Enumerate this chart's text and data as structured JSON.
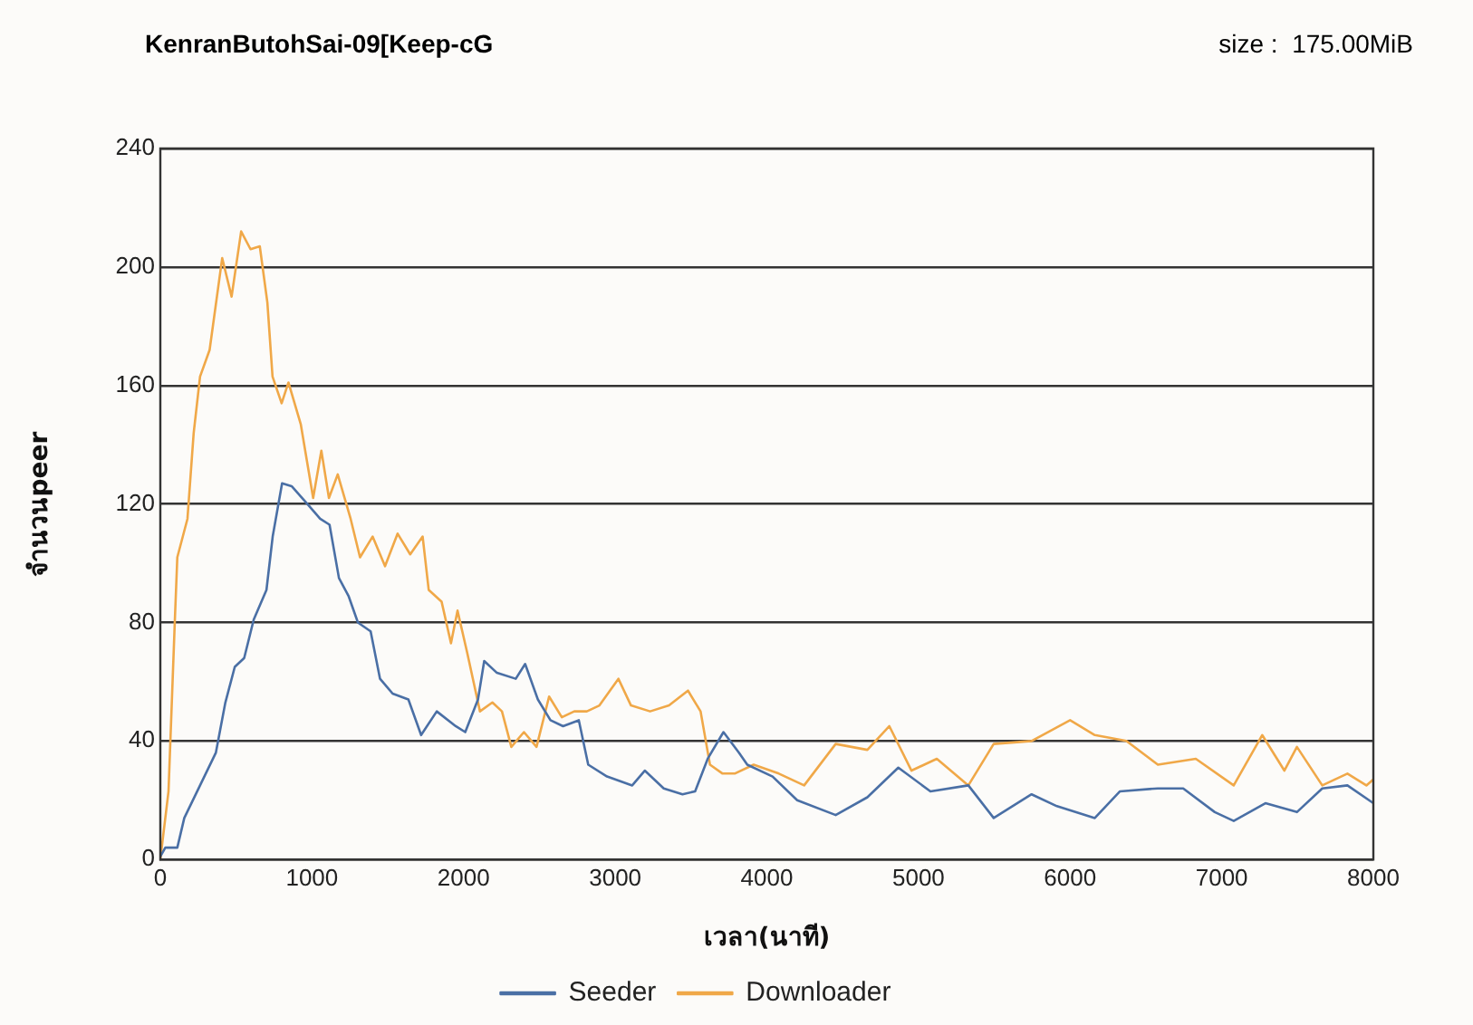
{
  "chart_data": {
    "type": "line",
    "title": "KenranButohSai-09[Keep-cG",
    "annotations": [
      "size :  175.00MiB"
    ],
    "xlabel": "เวลา(นาที)",
    "ylabel": "จำนวนpeer",
    "xlim": [
      0,
      8000
    ],
    "xticks": [
      0,
      1000,
      2000,
      3000,
      4000,
      5000,
      6000,
      7000,
      8000
    ],
    "ylim": [
      0,
      240
    ],
    "yticks": [
      0,
      40,
      80,
      120,
      160,
      200,
      240
    ],
    "grid": "y",
    "legend": "bottom",
    "marker": "none",
    "line_style": "solid",
    "series": [
      {
        "name": "Seeder",
        "color": "#4a6fa5",
        "x": [
          0,
          33,
          112,
          158,
          262,
          366,
          429,
          491,
          553,
          616,
          700,
          741,
          803,
          866,
          970,
          1054,
          1116,
          1178,
          1241,
          1303,
          1387,
          1449,
          1532,
          1636,
          1720,
          1823,
          1948,
          2011,
          2095,
          2136,
          2220,
          2344,
          2406,
          2490,
          2573,
          2656,
          2760,
          2822,
          2946,
          3112,
          3195,
          3320,
          3444,
          3527,
          3610,
          3714,
          3817,
          3871,
          4038,
          4200,
          4454,
          4663,
          4867,
          5079,
          5329,
          5496,
          5746,
          5913,
          6163,
          6329,
          6579,
          6746,
          6954,
          7079,
          7288,
          7496,
          7663,
          7829,
          8000
        ],
        "values": [
          1,
          4,
          4,
          14,
          25,
          36,
          53,
          65,
          68,
          81,
          91,
          109,
          127,
          126,
          120,
          115,
          113,
          95,
          89,
          80,
          77,
          61,
          56,
          54,
          42,
          50,
          45,
          43,
          54,
          67,
          63,
          61,
          66,
          54,
          47,
          45,
          47,
          32,
          28,
          25,
          30,
          24,
          22,
          23,
          34,
          43,
          36,
          32,
          28,
          20,
          15,
          21,
          31,
          23,
          25,
          14,
          22,
          18,
          14,
          23,
          24,
          24,
          16,
          13,
          19,
          16,
          24,
          25,
          19
        ]
      },
      {
        "name": "Downloader",
        "color": "#f0a848",
        "x": [
          0,
          54,
          96,
          112,
          179,
          220,
          262,
          325,
          408,
          470,
          533,
          595,
          656,
          706,
          740,
          800,
          845,
          926,
          1008,
          1062,
          1112,
          1170,
          1255,
          1317,
          1400,
          1482,
          1565,
          1648,
          1730,
          1770,
          1855,
          1917,
          1960,
          2023,
          2108,
          2190,
          2253,
          2315,
          2398,
          2481,
          2564,
          2648,
          2730,
          2813,
          2896,
          3021,
          3104,
          3230,
          3355,
          3480,
          3563,
          3625,
          3708,
          3788,
          3913,
          4079,
          4246,
          4454,
          4663,
          4808,
          4954,
          5121,
          5329,
          5496,
          5746,
          6000,
          6163,
          6371,
          6579,
          6829,
          7079,
          7267,
          7413,
          7496,
          7663,
          7829,
          7954,
          8000
        ],
        "values": [
          0,
          23,
          81,
          102,
          115,
          144,
          163,
          172,
          203,
          190,
          212,
          206,
          207,
          188,
          163,
          154,
          161,
          147,
          122,
          138,
          122,
          130,
          115,
          102,
          109,
          99,
          110,
          103,
          109,
          91,
          87,
          73,
          84,
          70,
          50,
          53,
          50,
          38,
          43,
          38,
          55,
          48,
          50,
          50,
          52,
          61,
          52,
          50,
          52,
          57,
          50,
          32,
          29,
          29,
          32,
          29,
          25,
          39,
          37,
          45,
          30,
          34,
          25,
          39,
          40,
          47,
          42,
          40,
          32,
          34,
          25,
          42,
          30,
          38,
          25,
          29,
          25,
          27
        ]
      }
    ]
  }
}
